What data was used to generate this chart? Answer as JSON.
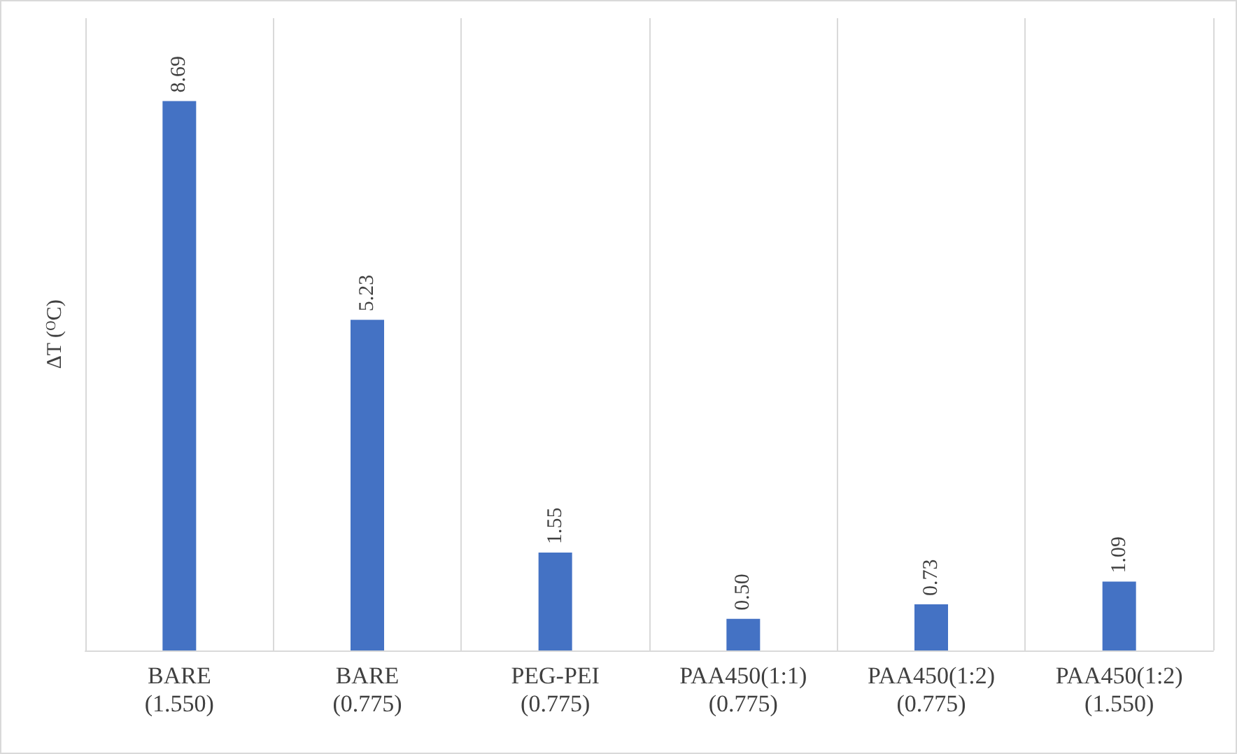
{
  "chart_data": {
    "type": "bar",
    "ylabel": "ΔT ($^{O}$C)",
    "categories": [
      "BARE\n(1.550)",
      "BARE\n(0.775)",
      "PEG-PEI\n(0.775)",
      "PAA450(1:1)\n(0.775)",
      "PAA450(1:2)\n(0.775)",
      "PAA450(1:2)\n(1.550)"
    ],
    "values": [
      8.69,
      5.23,
      1.55,
      0.5,
      0.73,
      1.09
    ],
    "color": "#4472c4",
    "value_labels": [
      "8.69",
      "5.23",
      "1.55",
      "0.50",
      "0.73",
      "1.09"
    ],
    "grid": "x",
    "tick_labels": "x"
  }
}
